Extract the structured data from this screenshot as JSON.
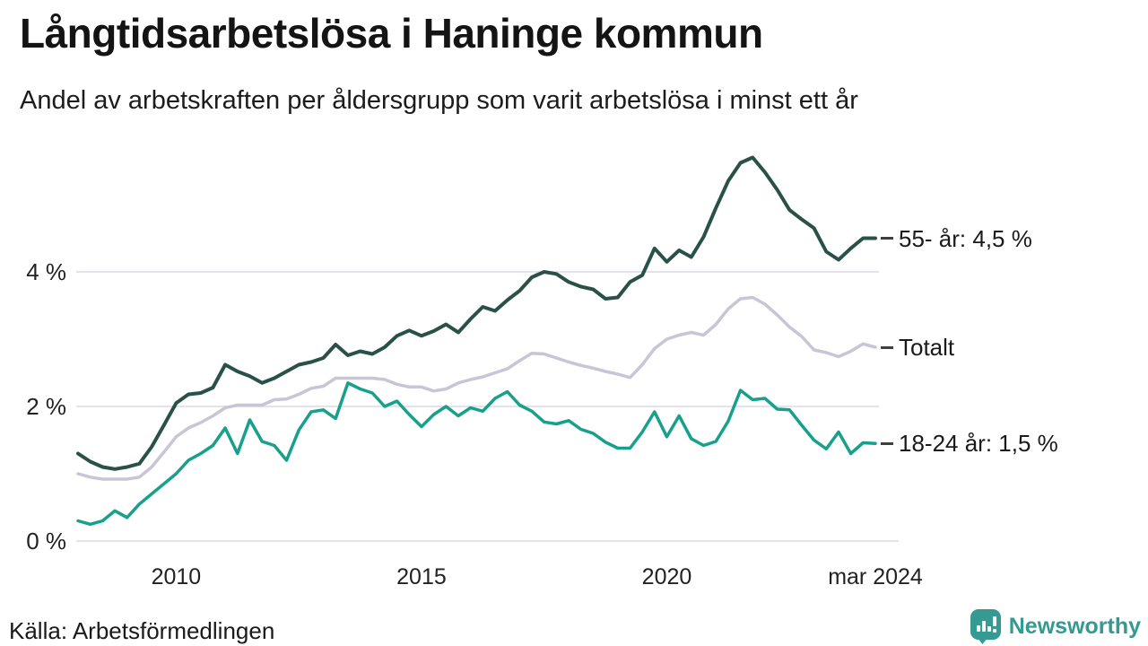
{
  "header": {
    "title": "Långtidsarbetslösa i Haninge kommun",
    "subtitle": "Andel av arbetskraften per åldersgrupp som varit arbetslösa i minst ett år"
  },
  "footer": {
    "source": "Källa: Arbetsförmedlingen"
  },
  "brand": {
    "name": "Newsworthy",
    "color": "#339a92",
    "icon": "bar-chart-speech-bubble-icon"
  },
  "chart_data": {
    "type": "line",
    "title": "Långtidsarbetslösa i Haninge kommun",
    "subtitle": "Andel av arbetskraften per åldersgrupp som varit arbetslösa i minst ett år",
    "unit": "% av arbetskraften",
    "x_start": 2008.0,
    "x_step": 0.25,
    "x_end": 2024.25,
    "ylim": [
      0,
      6
    ],
    "grid": "horizontal-only",
    "gridline_color": "#e5e3ea",
    "legend_position": "right-end-labels",
    "x_ticks": [
      {
        "label": "2010",
        "t": 2010
      },
      {
        "label": "2015",
        "t": 2015
      },
      {
        "label": "2020",
        "t": 2020
      },
      {
        "label": "mar 2024",
        "t": 2024.25
      }
    ],
    "y_ticks": [
      {
        "label": "0 %",
        "value": 0
      },
      {
        "label": "2 %",
        "value": 2
      },
      {
        "label": "4 %",
        "value": 4
      }
    ],
    "series": [
      {
        "name": "55- år",
        "end_label": "55- år: 4,5 %",
        "end_value": "4,5 %",
        "color": "#2a5147",
        "stroke_width": 4,
        "values": [
          1.3,
          1.18,
          1.1,
          1.07,
          1.1,
          1.15,
          1.4,
          1.72,
          2.05,
          2.18,
          2.2,
          2.28,
          2.62,
          2.52,
          2.45,
          2.35,
          2.42,
          2.52,
          2.62,
          2.66,
          2.72,
          2.92,
          2.76,
          2.82,
          2.78,
          2.88,
          3.05,
          3.13,
          3.05,
          3.12,
          3.22,
          3.1,
          3.3,
          3.48,
          3.42,
          3.58,
          3.72,
          3.92,
          4.0,
          3.97,
          3.85,
          3.78,
          3.74,
          3.6,
          3.62,
          3.85,
          3.95,
          4.35,
          4.15,
          4.32,
          4.22,
          4.52,
          4.95,
          5.35,
          5.62,
          5.7,
          5.48,
          5.22,
          4.92,
          4.78,
          4.65,
          4.3,
          4.18,
          4.35,
          4.5,
          4.5
        ]
      },
      {
        "name": "Totalt",
        "end_label": "Totalt",
        "end_value": "",
        "color": "#c8c5d6",
        "stroke_width": 3.5,
        "values": [
          1.0,
          0.95,
          0.92,
          0.92,
          0.92,
          0.95,
          1.1,
          1.32,
          1.55,
          1.68,
          1.76,
          1.86,
          1.98,
          2.02,
          2.02,
          2.02,
          2.1,
          2.11,
          2.18,
          2.27,
          2.3,
          2.42,
          2.42,
          2.42,
          2.42,
          2.4,
          2.33,
          2.29,
          2.29,
          2.23,
          2.26,
          2.35,
          2.4,
          2.44,
          2.5,
          2.56,
          2.68,
          2.79,
          2.78,
          2.72,
          2.66,
          2.61,
          2.57,
          2.52,
          2.48,
          2.43,
          2.62,
          2.86,
          3.0,
          3.06,
          3.1,
          3.06,
          3.22,
          3.45,
          3.6,
          3.62,
          3.52,
          3.36,
          3.18,
          3.04,
          2.84,
          2.8,
          2.74,
          2.82,
          2.93,
          2.88
        ]
      },
      {
        "name": "18-24 år",
        "end_label": "18-24 år: 1,5 %",
        "end_value": "1,5 %",
        "color": "#17a08b",
        "stroke_width": 3.5,
        "values": [
          0.3,
          0.25,
          0.3,
          0.45,
          0.35,
          0.55,
          0.7,
          0.85,
          1.0,
          1.2,
          1.3,
          1.42,
          1.68,
          1.3,
          1.8,
          1.48,
          1.42,
          1.2,
          1.65,
          1.92,
          1.95,
          1.82,
          2.35,
          2.26,
          2.2,
          2.0,
          2.08,
          1.88,
          1.7,
          1.88,
          2.0,
          1.86,
          1.98,
          1.93,
          2.12,
          2.22,
          2.02,
          1.93,
          1.77,
          1.74,
          1.79,
          1.66,
          1.6,
          1.47,
          1.38,
          1.38,
          1.62,
          1.92,
          1.55,
          1.86,
          1.52,
          1.42,
          1.48,
          1.78,
          2.24,
          2.1,
          2.12,
          1.96,
          1.95,
          1.72,
          1.5,
          1.37,
          1.62,
          1.3,
          1.46,
          1.45
        ]
      }
    ]
  }
}
